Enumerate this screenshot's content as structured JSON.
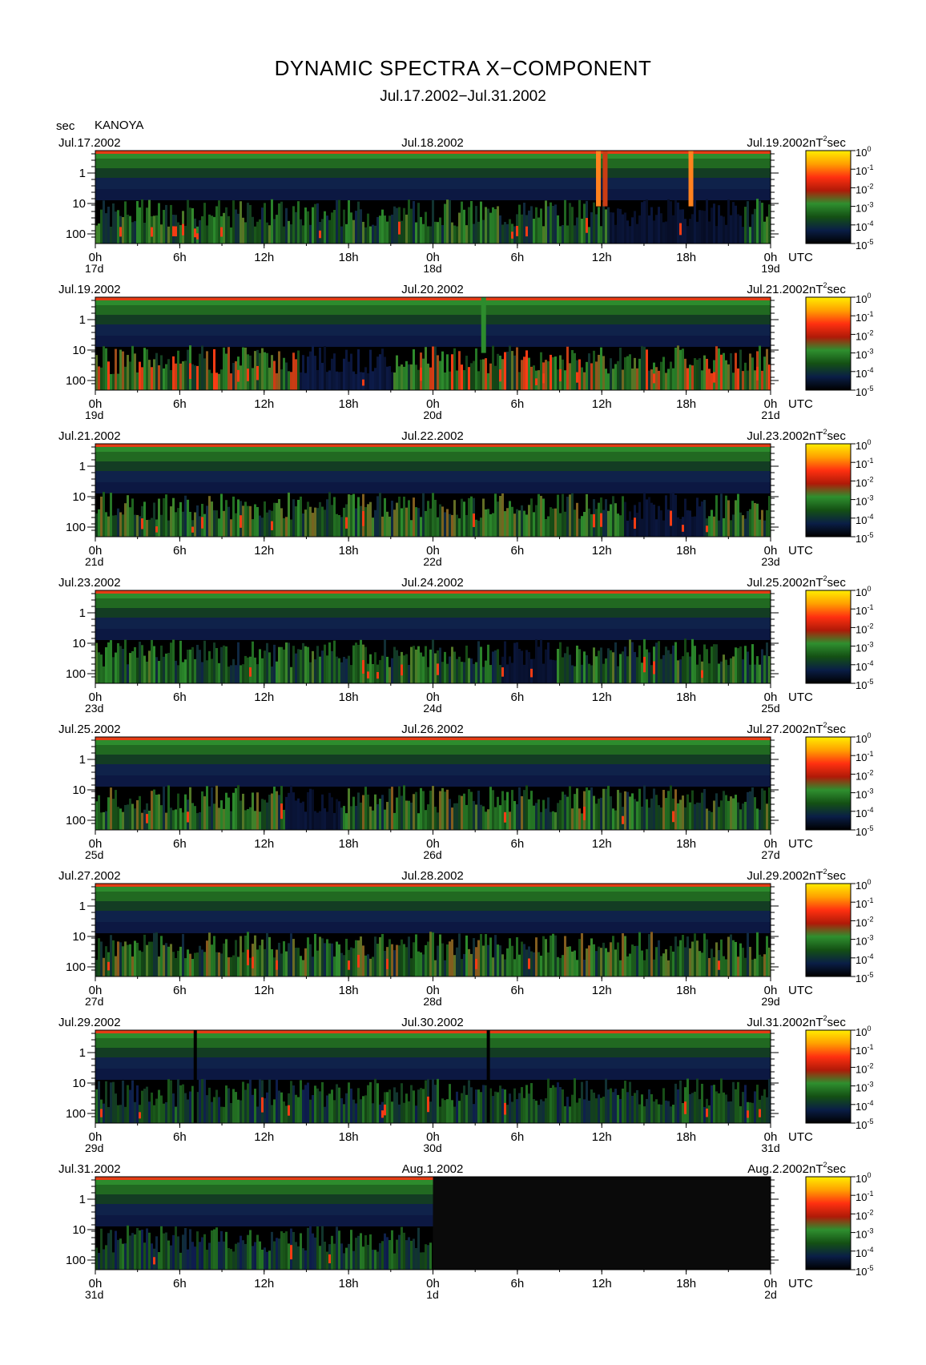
{
  "header": {
    "title": "DYNAMIC SPECTRA X−COMPONENT",
    "subtitle": "Jul.17.2002−Jul.31.2002",
    "y_unit": "sec",
    "station": "KANOYA"
  },
  "colors": {
    "background": "#000000",
    "low": "#0a1a3c",
    "mid": "#1f7f1f",
    "high": "#ff3010",
    "max": "#ffe200"
  },
  "chart_data": {
    "type": "heatmap",
    "title": "DYNAMIC SPECTRA X−COMPONENT",
    "subtitle": "Jul.17.2002−Jul.31.2002",
    "ylabel": "sec",
    "xlabel": "UTC",
    "y_ticks": [
      "1",
      "10",
      "100"
    ],
    "y_scale": "log",
    "x_ticks": [
      "0h",
      "6h",
      "12h",
      "18h",
      "0h",
      "6h",
      "12h",
      "18h",
      "0h"
    ],
    "colorbar": {
      "unit": "nT",
      "unit_exp": "2",
      "unit_suffix": "sec",
      "ticks": [
        {
          "base": "10",
          "exp": "0"
        },
        {
          "base": "10",
          "exp": "-1"
        },
        {
          "base": "10",
          "exp": "-2"
        },
        {
          "base": "10",
          "exp": "-3"
        },
        {
          "base": "10",
          "exp": "-4"
        },
        {
          "base": "10",
          "exp": "-5"
        }
      ],
      "colors": [
        "#ffee00",
        "#ffa000",
        "#ff3010",
        "#b01a08",
        "#2f8f2f",
        "#145014",
        "#0a1e46",
        "#000000"
      ]
    },
    "panels": [
      {
        "date_left": "Jul.17.2002",
        "date_mid": "Jul.18.2002",
        "date_right": "Jul.19.2002",
        "day_left": "17d",
        "day_mid": "18d",
        "day_right": "19d",
        "seed": 17,
        "activity": 0.55,
        "data_end_fraction": 1.0,
        "spikes": [
          [
            0.745,
            0.95
          ],
          [
            0.755,
            0.8
          ],
          [
            0.882,
            0.95
          ]
        ],
        "quiet": [
          [
            0.76,
            0.96
          ]
        ],
        "gaps": []
      },
      {
        "date_left": "Jul.19.2002",
        "date_mid": "Jul.20.2002",
        "date_right": "Jul.21.2002",
        "day_left": "19d",
        "day_mid": "20d",
        "day_right": "21d",
        "seed": 19,
        "activity": 0.75,
        "data_end_fraction": 1.0,
        "spikes": [
          [
            0.575,
            0.6
          ]
        ],
        "quiet": [
          [
            0.3,
            0.44
          ]
        ],
        "gaps": []
      },
      {
        "date_left": "Jul.21.2002",
        "date_mid": "Jul.22.2002",
        "date_right": "Jul.23.2002",
        "day_left": "21d",
        "day_mid": "22d",
        "day_right": "23d",
        "seed": 21,
        "activity": 0.6,
        "data_end_fraction": 1.0,
        "spikes": [],
        "quiet": [
          [
            0.78,
            0.9
          ]
        ],
        "gaps": []
      },
      {
        "date_left": "Jul.23.2002",
        "date_mid": "Jul.24.2002",
        "date_right": "Jul.25.2002",
        "day_left": "23d",
        "day_mid": "24d",
        "day_right": "25d",
        "seed": 23,
        "activity": 0.55,
        "data_end_fraction": 1.0,
        "spikes": [],
        "quiet": [
          [
            0.6,
            0.68
          ]
        ],
        "gaps": []
      },
      {
        "date_left": "Jul.25.2002",
        "date_mid": "Jul.26.2002",
        "date_right": "Jul.27.2002",
        "day_left": "25d",
        "day_mid": "26d",
        "day_right": "27d",
        "seed": 25,
        "activity": 0.6,
        "data_end_fraction": 1.0,
        "spikes": [],
        "quiet": [
          [
            0.28,
            0.36
          ]
        ],
        "gaps": []
      },
      {
        "date_left": "Jul.27.2002",
        "date_mid": "Jul.28.2002",
        "date_right": "Jul.29.2002",
        "day_left": "27d",
        "day_mid": "28d",
        "day_right": "29d",
        "seed": 27,
        "activity": 0.6,
        "data_end_fraction": 1.0,
        "spikes": [],
        "quiet": [],
        "gaps": []
      },
      {
        "date_left": "Jul.29.2002",
        "date_mid": "Jul.30.2002",
        "date_right": "Jul.31.2002",
        "day_left": "29d",
        "day_mid": "30d",
        "day_right": "31d",
        "seed": 29,
        "activity": 0.45,
        "data_end_fraction": 1.0,
        "spikes": [],
        "quiet": [],
        "gaps": [
          0.148,
          0.582
        ]
      },
      {
        "date_left": "Jul.31.2002",
        "date_mid": "Aug.1.2002",
        "date_right": "Aug.2.2002",
        "day_left": "31d",
        "day_mid": "1d",
        "day_right": "2d",
        "seed": 31,
        "activity": 0.45,
        "data_end_fraction": 0.5,
        "spikes": [],
        "quiet": [],
        "gaps": []
      }
    ]
  }
}
